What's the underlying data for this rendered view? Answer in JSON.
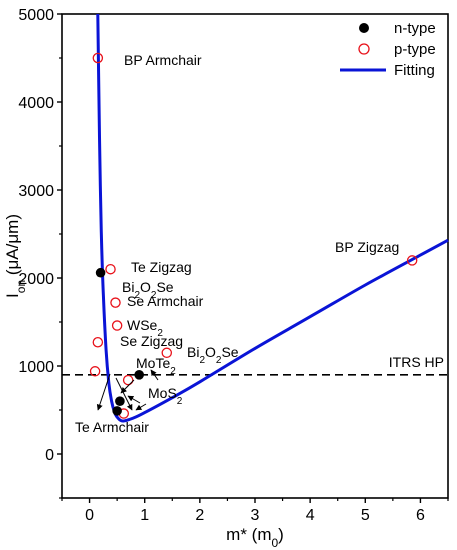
{
  "chart_data": {
    "type": "scatter",
    "xlabel": "m* (m",
    "xlabel_sub": "0",
    "xlabel_close": ")",
    "ylabel": "I",
    "ylabel_sub": "on",
    "ylabel_rest": " (μA/μm)",
    "xlim": [
      -0.5,
      6.5
    ],
    "ylim": [
      -500,
      5000
    ],
    "x_ticks": [
      0,
      1,
      2,
      3,
      4,
      5,
      6
    ],
    "y_ticks": [
      0,
      1000,
      2000,
      3000,
      4000,
      5000
    ],
    "grid": false,
    "legend_position": "top-right",
    "legend": [
      {
        "label": "n-type",
        "marker": "filled-circle"
      },
      {
        "label": "p-type",
        "marker": "open-circle"
      },
      {
        "label": "Fitting",
        "marker": "line"
      }
    ],
    "reference_line": {
      "label": "ITRS HP",
      "y": 900,
      "style": "dashed"
    },
    "colors": {
      "n_type": "#000000",
      "p_type": "#e8111a",
      "fitting": "#0a14d6",
      "reference": "#000000"
    },
    "series": [
      {
        "name": "n-type",
        "points": [
          {
            "x": 0.2,
            "y": 2060
          },
          {
            "x": 0.55,
            "y": 600
          },
          {
            "x": 0.9,
            "y": 900
          },
          {
            "x": 0.5,
            "y": 490
          }
        ]
      },
      {
        "name": "p-type",
        "points": [
          {
            "x": 0.15,
            "y": 4500
          },
          {
            "x": 0.38,
            "y": 2100
          },
          {
            "x": 0.47,
            "y": 1720
          },
          {
            "x": 0.5,
            "y": 1460
          },
          {
            "x": 0.15,
            "y": 1270
          },
          {
            "x": 1.4,
            "y": 1150
          },
          {
            "x": 0.1,
            "y": 940
          },
          {
            "x": 0.7,
            "y": 840
          },
          {
            "x": 0.62,
            "y": 460
          },
          {
            "x": 5.85,
            "y": 2200
          }
        ]
      },
      {
        "name": "Fitting",
        "x": [
          0.15,
          0.18,
          0.2,
          0.22,
          0.25,
          0.3,
          0.35,
          0.4,
          0.45,
          0.5,
          0.6,
          0.8,
          1.0,
          1.5,
          2.0,
          3.0,
          4.0,
          5.0,
          6.0,
          6.5
        ],
        "y": [
          5000,
          3600,
          2900,
          2350,
          1800,
          1180,
          800,
          600,
          480,
          420,
          375,
          410,
          470,
          640,
          820,
          1200,
          1560,
          1920,
          2260,
          2430
        ]
      }
    ],
    "annotations": [
      {
        "id": "bp-armchair",
        "text": "BP Armchair"
      },
      {
        "id": "te-zigzag",
        "text": "Te Zigzag"
      },
      {
        "id": "bi2o2se-n",
        "text": "Bi",
        "sub1": "2",
        "mid": "O",
        "sub2": "2",
        "tail": "Se"
      },
      {
        "id": "se-armchair",
        "text": "Se Armchair"
      },
      {
        "id": "wse2",
        "text": "WSe",
        "sub1": "2"
      },
      {
        "id": "se-zigzag",
        "text": "Se Zigzag"
      },
      {
        "id": "bi2o2se-p",
        "text": "Bi",
        "sub1": "2",
        "mid": "O",
        "sub2": "2",
        "tail": "Se"
      },
      {
        "id": "mote2",
        "text": "MoTe",
        "sub1": "2"
      },
      {
        "id": "mos2",
        "text": "MoS",
        "sub1": "2"
      },
      {
        "id": "te-armchair",
        "text": "Te Armchair"
      },
      {
        "id": "bp-zigzag",
        "text": "BP Zigzag"
      }
    ]
  }
}
